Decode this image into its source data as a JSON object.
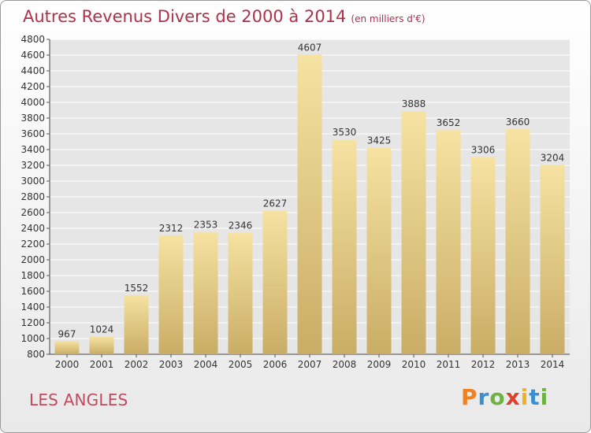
{
  "header": {
    "title": "Autres Revenus Divers de 2000 à 2014",
    "subtitle": "(en milliers d'€)"
  },
  "footer": {
    "place": "LES ANGLES",
    "brand": "Proxiti"
  },
  "colors": {
    "title": "#b0304a",
    "bar_light": "#f6e2a2",
    "bar_dark": "#c9ad66",
    "brand_letters": [
      "#f08020",
      "#3a8fd0",
      "#6db33f",
      "#e0402a",
      "#f0b020",
      "#3a8fd0",
      "#6db33f"
    ]
  },
  "chart_data": {
    "type": "bar",
    "categories": [
      "2000",
      "2001",
      "2002",
      "2003",
      "2004",
      "2005",
      "2006",
      "2007",
      "2008",
      "2009",
      "2010",
      "2011",
      "2012",
      "2013",
      "2014"
    ],
    "values": [
      967,
      1024,
      1552,
      2312,
      2353,
      2346,
      2627,
      4607,
      3530,
      3425,
      3888,
      3652,
      3306,
      3660,
      3204
    ],
    "title": "Autres Revenus Divers de 2000 à 2014",
    "xlabel": "",
    "ylabel": "",
    "ylim": [
      800,
      4800
    ],
    "yticks": [
      800,
      1000,
      1200,
      1400,
      1600,
      1800,
      2000,
      2200,
      2400,
      2600,
      2800,
      3000,
      3200,
      3400,
      3600,
      3800,
      4000,
      4200,
      4400,
      4600,
      4800
    ],
    "grid": true
  }
}
